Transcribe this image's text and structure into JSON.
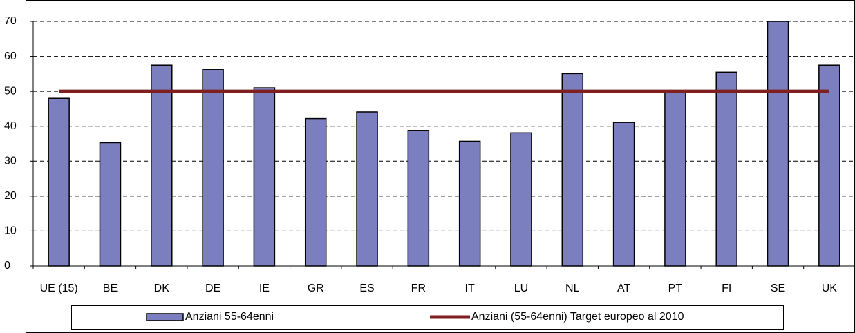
{
  "chart_data": {
    "type": "bar",
    "categories": [
      "UE (15)",
      "BE",
      "DK",
      "DE",
      "IE",
      "GR",
      "ES",
      "FR",
      "IT",
      "LU",
      "NL",
      "AT",
      "PT",
      "FI",
      "SE",
      "UK"
    ],
    "series": [
      {
        "name": "Anziani 55-64enni",
        "type": "bar",
        "color": "#7b7fbf",
        "values": [
          48,
          35.3,
          57.5,
          56.2,
          51,
          42.2,
          44.1,
          38.8,
          35.7,
          38.1,
          55.1,
          41.1,
          50,
          55.5,
          70,
          57.5
        ]
      },
      {
        "name": "Anziani (55-64enni) Target europeo al 2010",
        "type": "line",
        "color": "#7f1f1f",
        "values": [
          50,
          50,
          50,
          50,
          50,
          50,
          50,
          50,
          50,
          50,
          50,
          50,
          50,
          50,
          50,
          50
        ]
      }
    ],
    "ylim": [
      0,
      70
    ],
    "yticks": [
      0,
      10,
      20,
      30,
      40,
      50,
      60,
      70
    ],
    "grid": true,
    "legend": "bottom"
  }
}
